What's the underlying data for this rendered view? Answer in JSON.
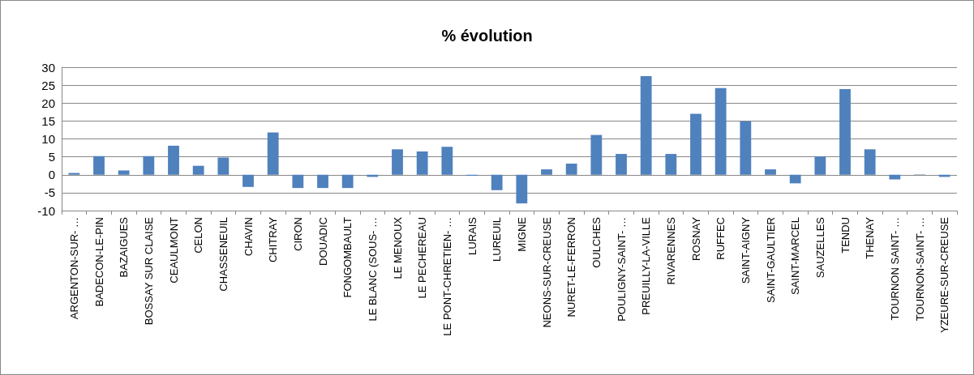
{
  "chart_data": {
    "type": "bar",
    "title": "% évolution",
    "categories": [
      "ARGENTON-SUR- …",
      "BADECON-LE-PIN",
      "BAZAIGUES",
      "BOSSAY SUR CLAISE",
      "CEAULMONT",
      "CELON",
      "CHASSENEUIL",
      "CHAVIN",
      "CHITRAY",
      "CIRON",
      "DOUADIC",
      "FONGOMBAULT",
      "LE BLANC (SOUS- …",
      "LE MENOUX",
      "LE PECHEREAU",
      "LE PONT-CHRETIEN- …",
      "LURAIS",
      "LUREUIL",
      "MIGNE",
      "NEONS-SUR-CREUSE",
      "NURET-LE-FERRON",
      "OULCHES",
      "POULIGNY-SAINT- …",
      "PREUILLY-LA-VILLE",
      "RIVARENNES",
      "ROSNAY",
      "RUFFEC",
      "SAINT-AIGNY",
      "SAINT-GAULTIER",
      "SAINT-MARCEL",
      "SAUZELLES",
      "TENDU",
      "THENAY",
      "TOURNON SAINT- …",
      "TOURNON-SAINT- …",
      "YZEURE-SUR-CREUSE"
    ],
    "values": [
      0.5,
      5.2,
      1.2,
      5.2,
      8.1,
      2.5,
      4.8,
      -3.4,
      11.8,
      -3.7,
      -3.7,
      -3.7,
      -0.6,
      7.1,
      6.5,
      7.8,
      -0.3,
      -4.3,
      -8,
      1.5,
      3.1,
      11.1,
      5.8,
      27.5,
      5.8,
      17,
      24.2,
      14.9,
      1.5,
      -2.4,
      5.1,
      23.9,
      7.1,
      -1.3,
      0.1,
      -0.6
    ],
    "color": "#4f81bd",
    "ylim": [
      -10,
      30
    ],
    "yticks": [
      -10,
      -5,
      0,
      5,
      10,
      15,
      20,
      25,
      30
    ],
    "grid": "y"
  }
}
